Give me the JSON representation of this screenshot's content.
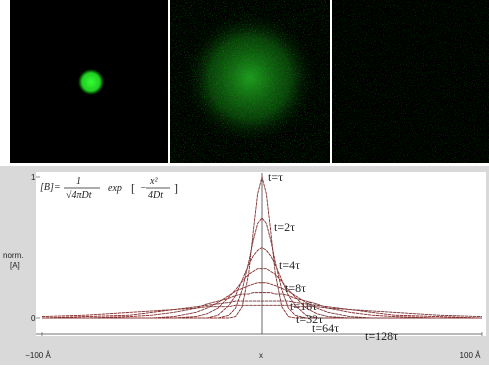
{
  "chart_data": {
    "type": "line",
    "formula": {
      "lhs": "[B]=",
      "num": "1",
      "den": "√4πDt",
      "fn": "exp",
      "bracket_open": "[",
      "sign": "−",
      "exp_num": "x²",
      "exp_den": "4Dt",
      "bracket_close": "]"
    },
    "y_label_top": "norm.",
    "y_label_bottom": "[A]",
    "x_label": "x",
    "xlim": [
      -100,
      100
    ],
    "xticks": [
      {
        "value": -100,
        "label": "−100 Å"
      },
      {
        "value": 100,
        "label": "100 Å"
      }
    ],
    "ylim": [
      0,
      1
    ],
    "yticks": [
      0,
      1
    ],
    "x": [
      -100,
      -80,
      -60,
      -50,
      -40,
      -30,
      -25,
      -20,
      -15,
      -12,
      -9,
      -6,
      -4,
      -2,
      0,
      2,
      4,
      6,
      9,
      12,
      15,
      20,
      25,
      30,
      40,
      50,
      60,
      80,
      100
    ],
    "series": [
      {
        "name": "t=τ",
        "color": "#b01818",
        "values": [
          0,
          0,
          0,
          0,
          0,
          0,
          0,
          0,
          0,
          0.01,
          0.08,
          0.32,
          0.61,
          0.88,
          1,
          0.88,
          0.61,
          0.32,
          0.08,
          0.01,
          0,
          0,
          0,
          0,
          0,
          0,
          0,
          0,
          0
        ]
      },
      {
        "name": "t=2τ",
        "color": "#b01818",
        "values": [
          0,
          0,
          0,
          0,
          0,
          0,
          0,
          0,
          0.02,
          0.07,
          0.2,
          0.4,
          0.55,
          0.67,
          0.71,
          0.67,
          0.55,
          0.4,
          0.2,
          0.07,
          0.02,
          0,
          0,
          0,
          0,
          0,
          0,
          0,
          0
        ]
      },
      {
        "name": "t=4τ",
        "color": "#b01818",
        "values": [
          0,
          0,
          0,
          0,
          0,
          0,
          0,
          0.02,
          0.09,
          0.16,
          0.27,
          0.38,
          0.44,
          0.48,
          0.5,
          0.48,
          0.44,
          0.38,
          0.27,
          0.16,
          0.09,
          0.02,
          0,
          0,
          0,
          0,
          0,
          0,
          0
        ]
      },
      {
        "name": "t=8τ",
        "color": "#b01818",
        "values": [
          0,
          0,
          0,
          0,
          0,
          0.01,
          0.03,
          0.07,
          0.15,
          0.2,
          0.26,
          0.31,
          0.33,
          0.35,
          0.35,
          0.35,
          0.33,
          0.31,
          0.26,
          0.2,
          0.15,
          0.07,
          0.03,
          0.01,
          0,
          0,
          0,
          0,
          0
        ]
      },
      {
        "name": "t=16τ",
        "color": "#b01818",
        "values": [
          0,
          0,
          0,
          0,
          0.01,
          0.04,
          0.07,
          0.11,
          0.16,
          0.19,
          0.21,
          0.23,
          0.24,
          0.25,
          0.25,
          0.25,
          0.24,
          0.23,
          0.21,
          0.19,
          0.16,
          0.11,
          0.07,
          0.04,
          0.01,
          0,
          0,
          0,
          0
        ]
      },
      {
        "name": "t=32τ",
        "color": "#b01818",
        "values": [
          0,
          0,
          0.01,
          0.02,
          0.04,
          0.07,
          0.1,
          0.12,
          0.14,
          0.16,
          0.17,
          0.17,
          0.18,
          0.18,
          0.18,
          0.18,
          0.18,
          0.17,
          0.17,
          0.16,
          0.14,
          0.12,
          0.1,
          0.07,
          0.04,
          0.02,
          0.01,
          0,
          0
        ]
      },
      {
        "name": "t=64τ",
        "color": "#b01818",
        "values": [
          0,
          0.01,
          0.02,
          0.04,
          0.06,
          0.08,
          0.09,
          0.1,
          0.11,
          0.12,
          0.12,
          0.12,
          0.12,
          0.12,
          0.12,
          0.12,
          0.12,
          0.12,
          0.12,
          0.12,
          0.11,
          0.1,
          0.09,
          0.08,
          0.06,
          0.04,
          0.02,
          0.01,
          0
        ]
      },
      {
        "name": "t=128τ",
        "color": "#b01818",
        "values": [
          0.01,
          0.02,
          0.04,
          0.05,
          0.06,
          0.07,
          0.08,
          0.08,
          0.08,
          0.09,
          0.09,
          0.09,
          0.09,
          0.09,
          0.09,
          0.09,
          0.09,
          0.09,
          0.09,
          0.09,
          0.08,
          0.08,
          0.08,
          0.07,
          0.06,
          0.05,
          0.04,
          0.02,
          0.01
        ]
      }
    ]
  }
}
